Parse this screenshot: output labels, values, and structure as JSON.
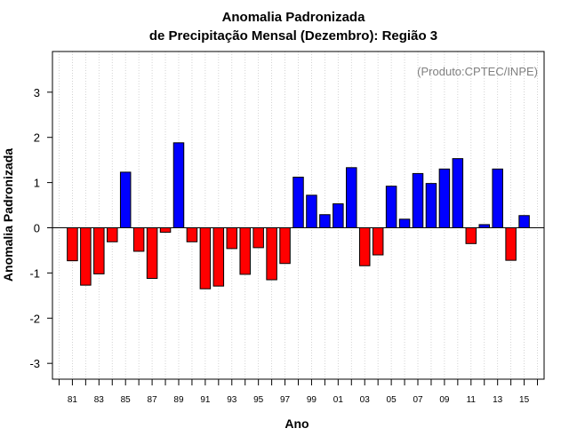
{
  "chart_data": {
    "type": "bar",
    "title": "Anomalia Padronizada",
    "subtitle": "de Precipitação Mensal (Dezembro): Região 3",
    "xlabel": "Ano",
    "ylabel": "Anomalia Padronizada",
    "credit": "(Produto:CPTEC/INPE)",
    "ylim": [
      -3.35,
      3.9
    ],
    "yticks": [
      "-3",
      "-2",
      "-1",
      "0",
      "1",
      "2",
      "3"
    ],
    "ytick_values": [
      -3,
      -2,
      -1,
      0,
      1,
      2,
      3
    ],
    "x": [
      1981,
      1982,
      1983,
      1984,
      1985,
      1986,
      1987,
      1988,
      1989,
      1990,
      1991,
      1992,
      1993,
      1994,
      1995,
      1996,
      1997,
      1998,
      1999,
      2000,
      2001,
      2002,
      2003,
      2004,
      2005,
      2006,
      2007,
      2008,
      2009,
      2010,
      2011,
      2012,
      2013,
      2014,
      2015
    ],
    "xlim": [
      1979.5,
      2016.5
    ],
    "xtick_labels": [
      {
        "year": 1981,
        "label": "81"
      },
      {
        "year": 1983,
        "label": "83"
      },
      {
        "year": 1985,
        "label": "85"
      },
      {
        "year": 1987,
        "label": "87"
      },
      {
        "year": 1989,
        "label": "89"
      },
      {
        "year": 1991,
        "label": "91"
      },
      {
        "year": 1993,
        "label": "93"
      },
      {
        "year": 1995,
        "label": "95"
      },
      {
        "year": 1997,
        "label": "97"
      },
      {
        "year": 1999,
        "label": "99"
      },
      {
        "year": 2001,
        "label": "01"
      },
      {
        "year": 2003,
        "label": "03"
      },
      {
        "year": 2005,
        "label": "05"
      },
      {
        "year": 2007,
        "label": "07"
      },
      {
        "year": 2009,
        "label": "09"
      },
      {
        "year": 2011,
        "label": "11"
      },
      {
        "year": 2013,
        "label": "13"
      },
      {
        "year": 2015,
        "label": "15"
      }
    ],
    "values": [
      -0.73,
      -1.27,
      -1.02,
      -0.31,
      1.23,
      -0.52,
      -1.12,
      -0.1,
      1.88,
      -0.31,
      -1.35,
      -1.29,
      -0.46,
      -1.03,
      -0.44,
      -1.15,
      -0.79,
      1.12,
      0.72,
      0.29,
      0.53,
      1.33,
      -0.84,
      -0.6,
      0.92,
      0.19,
      1.2,
      0.98,
      1.3,
      1.53,
      -0.35,
      0.07,
      1.3,
      -0.72,
      0.27
    ],
    "colors": {
      "positive": "#0000ff",
      "negative": "#ff0000",
      "grid": "#c8c8c8",
      "zero_line": "#000000",
      "credit": "#808080"
    },
    "grid": "vertical-dotted"
  }
}
